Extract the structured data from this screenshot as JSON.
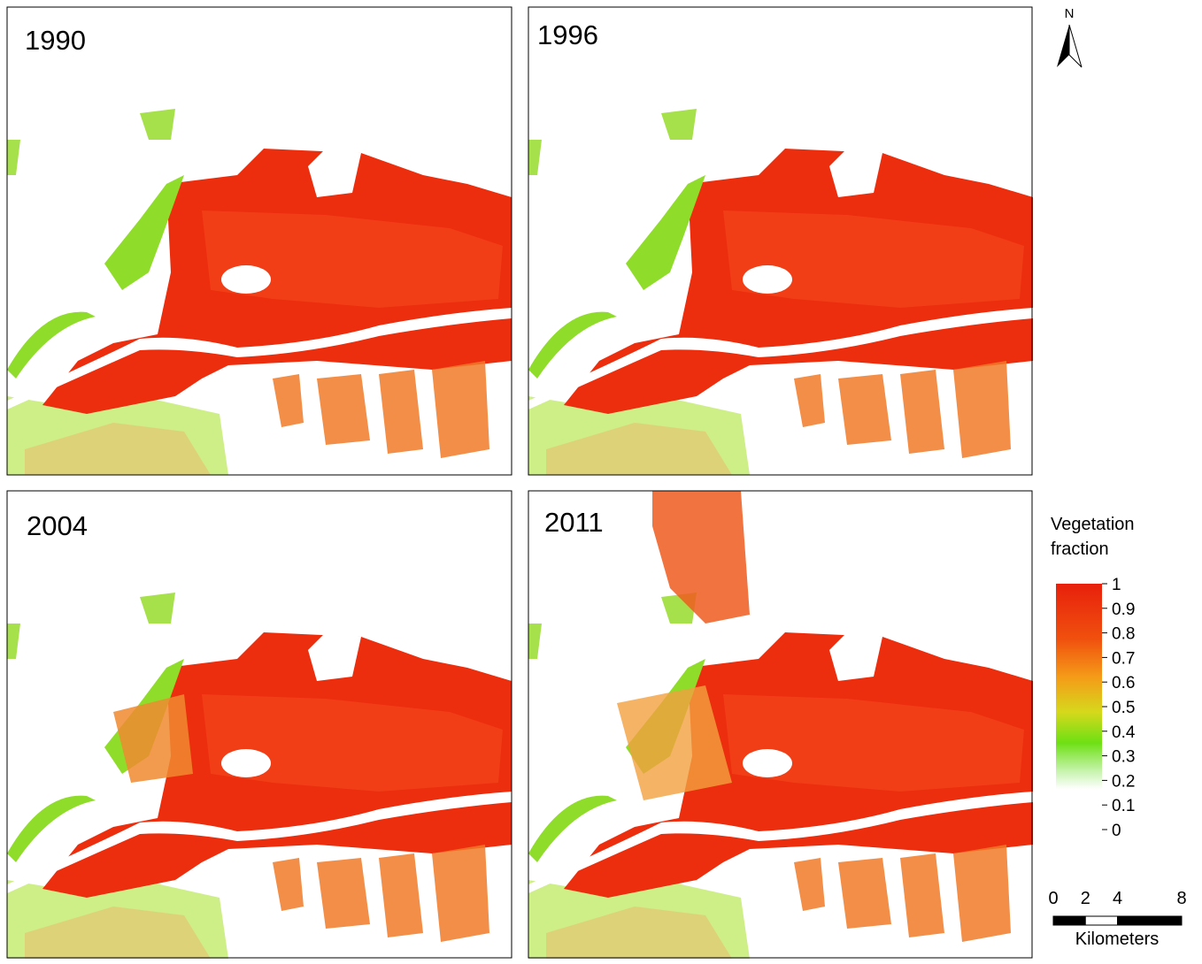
{
  "panels": [
    {
      "label": "1990"
    },
    {
      "label": "1996"
    },
    {
      "label": "2004"
    },
    {
      "label": "2011"
    }
  ],
  "north": "N",
  "legend": {
    "title_lines": [
      "Vegetation",
      "fraction"
    ],
    "ticks": [
      1,
      0.9,
      0.8,
      0.7,
      0.6,
      0.5,
      0.4,
      0.3,
      0.2,
      0.1,
      0
    ]
  },
  "scale_bar": {
    "ticks": [
      0,
      2,
      4,
      8
    ],
    "unit": "Kilometers"
  }
}
